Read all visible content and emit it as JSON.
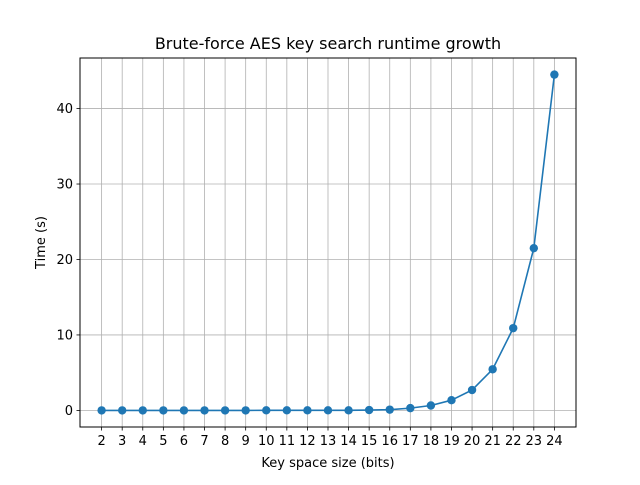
{
  "chart_data": {
    "type": "line",
    "title": "Brute-force AES key search runtime growth",
    "xlabel": "Key space size (bits)",
    "ylabel": "Time (s)",
    "x": [
      2,
      3,
      4,
      5,
      6,
      7,
      8,
      9,
      10,
      11,
      12,
      13,
      14,
      15,
      16,
      17,
      18,
      19,
      20,
      21,
      22,
      23,
      24
    ],
    "series": [
      {
        "values": [
          0.0,
          0.0,
          0.0,
          0.0,
          0.0,
          0.0,
          0.0,
          0.0,
          0.01,
          0.01,
          0.01,
          0.01,
          0.01,
          0.05,
          0.1,
          0.3,
          0.65,
          1.35,
          2.7,
          5.45,
          10.9,
          21.5,
          44.5
        ],
        "color": "#1f77b4",
        "marker": "circle"
      }
    ],
    "xticks": [
      2,
      3,
      4,
      5,
      6,
      7,
      8,
      9,
      10,
      11,
      12,
      13,
      14,
      15,
      16,
      17,
      18,
      19,
      20,
      21,
      22,
      23,
      24
    ],
    "yticks": [
      0,
      10,
      20,
      30,
      40
    ],
    "xlim": [
      0.95,
      25.05
    ],
    "ylim": [
      -2.2,
      46.7
    ],
    "grid": true
  }
}
